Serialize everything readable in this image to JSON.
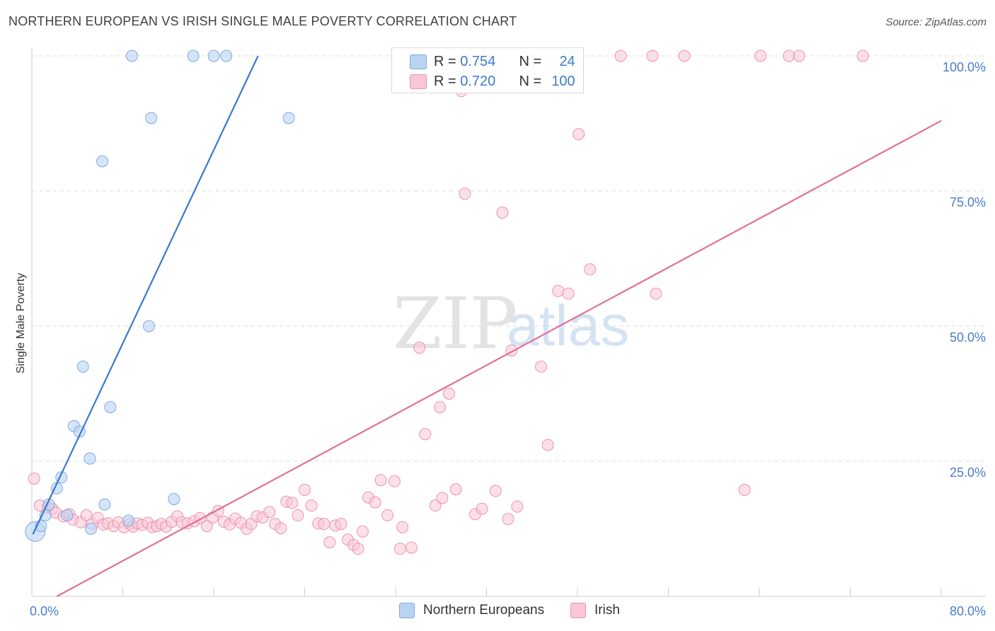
{
  "title": "NORTHERN EUROPEAN VS IRISH SINGLE MALE POVERTY CORRELATION CHART",
  "source": "Source: ZipAtlas.com",
  "watermark": {
    "left": "ZIP",
    "right": "atlas"
  },
  "legend_top": [
    {
      "r_label": "R = ",
      "r_value": "0.754",
      "n_label": "N = ",
      "n_value": "24"
    },
    {
      "r_label": "R = ",
      "r_value": "0.720",
      "n_label": "N = ",
      "n_value": "100"
    }
  ],
  "colors": {
    "blue_fill": "#b9d3f3",
    "blue_stroke": "#7ea9de",
    "blue_line": "#3a78cc",
    "pink_fill": "#f9c6d6",
    "pink_stroke": "#ec93b1",
    "pink_line": "#e0709a",
    "tick_text": "#4a7cc7",
    "grid": "#dddddd"
  },
  "chart_data": {
    "type": "scatter",
    "title": "NORTHERN EUROPEAN VS IRISH SINGLE MALE POVERTY CORRELATION CHART",
    "xlabel": "",
    "ylabel": "Single Male Poverty",
    "xlim": [
      0,
      80
    ],
    "ylim": [
      0,
      100
    ],
    "x_tick_labels": [
      "0.0%",
      "80.0%"
    ],
    "y_tick_labels": [
      "25.0%",
      "50.0%",
      "75.0%",
      "100.0%"
    ],
    "y_ticks": [
      25,
      50,
      75,
      100
    ],
    "grid": "horizontal dashed",
    "legend_position": "top-center",
    "series": [
      {
        "name": "Northern Europeans",
        "color": "#b9d3f3",
        "r": 0.754,
        "n": 24,
        "trend": {
          "x": [
            0.1,
            19.9
          ],
          "y": [
            11.5,
            100
          ]
        },
        "points": [
          {
            "x": 0.3,
            "y": 12.0,
            "big": true
          },
          {
            "x": 0.8,
            "y": 13.0
          },
          {
            "x": 1.2,
            "y": 15.0
          },
          {
            "x": 1.5,
            "y": 17.0
          },
          {
            "x": 2.2,
            "y": 20.0
          },
          {
            "x": 2.6,
            "y": 22.0
          },
          {
            "x": 3.1,
            "y": 15.0
          },
          {
            "x": 3.7,
            "y": 31.5
          },
          {
            "x": 4.2,
            "y": 30.5
          },
          {
            "x": 4.5,
            "y": 42.5
          },
          {
            "x": 5.1,
            "y": 25.5
          },
          {
            "x": 5.2,
            "y": 12.5
          },
          {
            "x": 6.2,
            "y": 80.5
          },
          {
            "x": 6.4,
            "y": 17.0
          },
          {
            "x": 6.9,
            "y": 35.0
          },
          {
            "x": 8.5,
            "y": 14.0
          },
          {
            "x": 8.8,
            "y": 100
          },
          {
            "x": 10.3,
            "y": 50.0
          },
          {
            "x": 10.5,
            "y": 88.5
          },
          {
            "x": 12.5,
            "y": 18.0
          },
          {
            "x": 14.2,
            "y": 100
          },
          {
            "x": 16.0,
            "y": 100
          },
          {
            "x": 17.1,
            "y": 100
          },
          {
            "x": 22.6,
            "y": 88.5
          }
        ]
      },
      {
        "name": "Irish",
        "color": "#f9c6d6",
        "r": 0.72,
        "n": 100,
        "trend": {
          "x": [
            2.2,
            80
          ],
          "y": [
            0,
            88
          ]
        },
        "points": [
          {
            "x": 0.2,
            "y": 21.8
          },
          {
            "x": 0.7,
            "y": 16.8
          },
          {
            "x": 1.4,
            "y": 16.5
          },
          {
            "x": 1.8,
            "y": 16.2
          },
          {
            "x": 2.1,
            "y": 15.5
          },
          {
            "x": 2.8,
            "y": 14.8
          },
          {
            "x": 3.3,
            "y": 15.2
          },
          {
            "x": 3.6,
            "y": 14.2
          },
          {
            "x": 4.3,
            "y": 13.7
          },
          {
            "x": 4.8,
            "y": 15.0
          },
          {
            "x": 5.3,
            "y": 13.4
          },
          {
            "x": 5.8,
            "y": 14.5
          },
          {
            "x": 6.3,
            "y": 13.3
          },
          {
            "x": 6.7,
            "y": 13.5
          },
          {
            "x": 7.2,
            "y": 13.0
          },
          {
            "x": 7.6,
            "y": 13.7
          },
          {
            "x": 8.1,
            "y": 12.8
          },
          {
            "x": 8.6,
            "y": 13.4
          },
          {
            "x": 8.9,
            "y": 12.9
          },
          {
            "x": 9.3,
            "y": 13.5
          },
          {
            "x": 9.7,
            "y": 13.2
          },
          {
            "x": 10.2,
            "y": 13.6
          },
          {
            "x": 10.6,
            "y": 12.8
          },
          {
            "x": 11.0,
            "y": 13.0
          },
          {
            "x": 11.4,
            "y": 13.4
          },
          {
            "x": 11.8,
            "y": 12.9
          },
          {
            "x": 12.3,
            "y": 13.8
          },
          {
            "x": 12.8,
            "y": 14.8
          },
          {
            "x": 13.2,
            "y": 13.7
          },
          {
            "x": 13.7,
            "y": 13.5
          },
          {
            "x": 14.3,
            "y": 13.9
          },
          {
            "x": 14.8,
            "y": 14.5
          },
          {
            "x": 15.4,
            "y": 13.0
          },
          {
            "x": 15.9,
            "y": 14.6
          },
          {
            "x": 16.4,
            "y": 15.8
          },
          {
            "x": 16.9,
            "y": 13.8
          },
          {
            "x": 17.4,
            "y": 13.3
          },
          {
            "x": 17.9,
            "y": 14.4
          },
          {
            "x": 18.4,
            "y": 13.6
          },
          {
            "x": 18.9,
            "y": 12.5
          },
          {
            "x": 19.3,
            "y": 13.4
          },
          {
            "x": 19.8,
            "y": 14.8
          },
          {
            "x": 20.3,
            "y": 14.6
          },
          {
            "x": 20.9,
            "y": 15.6
          },
          {
            "x": 21.4,
            "y": 13.4
          },
          {
            "x": 21.9,
            "y": 12.6
          },
          {
            "x": 22.4,
            "y": 17.5
          },
          {
            "x": 22.9,
            "y": 17.3
          },
          {
            "x": 23.4,
            "y": 15.0
          },
          {
            "x": 24.0,
            "y": 19.7
          },
          {
            "x": 24.6,
            "y": 16.8
          },
          {
            "x": 25.2,
            "y": 13.5
          },
          {
            "x": 25.7,
            "y": 13.4
          },
          {
            "x": 26.2,
            "y": 10.0
          },
          {
            "x": 26.7,
            "y": 13.1
          },
          {
            "x": 27.2,
            "y": 13.4
          },
          {
            "x": 27.8,
            "y": 10.5
          },
          {
            "x": 28.3,
            "y": 9.5
          },
          {
            "x": 28.7,
            "y": 8.8
          },
          {
            "x": 29.1,
            "y": 12.0
          },
          {
            "x": 29.6,
            "y": 18.3
          },
          {
            "x": 30.2,
            "y": 17.4
          },
          {
            "x": 30.7,
            "y": 21.5
          },
          {
            "x": 31.3,
            "y": 15.0
          },
          {
            "x": 31.9,
            "y": 21.3
          },
          {
            "x": 32.4,
            "y": 8.8
          },
          {
            "x": 32.6,
            "y": 12.8
          },
          {
            "x": 33.4,
            "y": 9.0
          },
          {
            "x": 34.1,
            "y": 46.0
          },
          {
            "x": 34.6,
            "y": 30.0
          },
          {
            "x": 35.5,
            "y": 16.8
          },
          {
            "x": 35.9,
            "y": 35.0
          },
          {
            "x": 36.1,
            "y": 18.2
          },
          {
            "x": 36.7,
            "y": 37.5
          },
          {
            "x": 37.3,
            "y": 19.8
          },
          {
            "x": 37.8,
            "y": 93.5
          },
          {
            "x": 38.1,
            "y": 74.5
          },
          {
            "x": 39.0,
            "y": 15.2
          },
          {
            "x": 39.6,
            "y": 16.2
          },
          {
            "x": 40.8,
            "y": 19.5
          },
          {
            "x": 41.4,
            "y": 71.0
          },
          {
            "x": 41.9,
            "y": 14.3
          },
          {
            "x": 42.2,
            "y": 45.5
          },
          {
            "x": 42.7,
            "y": 16.6
          },
          {
            "x": 43.4,
            "y": 100
          },
          {
            "x": 44.8,
            "y": 42.5
          },
          {
            "x": 45.4,
            "y": 28.0
          },
          {
            "x": 46.3,
            "y": 56.5
          },
          {
            "x": 47.2,
            "y": 56.0
          },
          {
            "x": 48.1,
            "y": 85.5
          },
          {
            "x": 49.1,
            "y": 60.5
          },
          {
            "x": 51.8,
            "y": 100
          },
          {
            "x": 54.6,
            "y": 100
          },
          {
            "x": 54.9,
            "y": 56.0
          },
          {
            "x": 57.4,
            "y": 100
          },
          {
            "x": 62.7,
            "y": 19.7
          },
          {
            "x": 64.1,
            "y": 100
          },
          {
            "x": 66.6,
            "y": 100
          },
          {
            "x": 67.5,
            "y": 100
          },
          {
            "x": 73.1,
            "y": 100
          }
        ]
      }
    ]
  }
}
